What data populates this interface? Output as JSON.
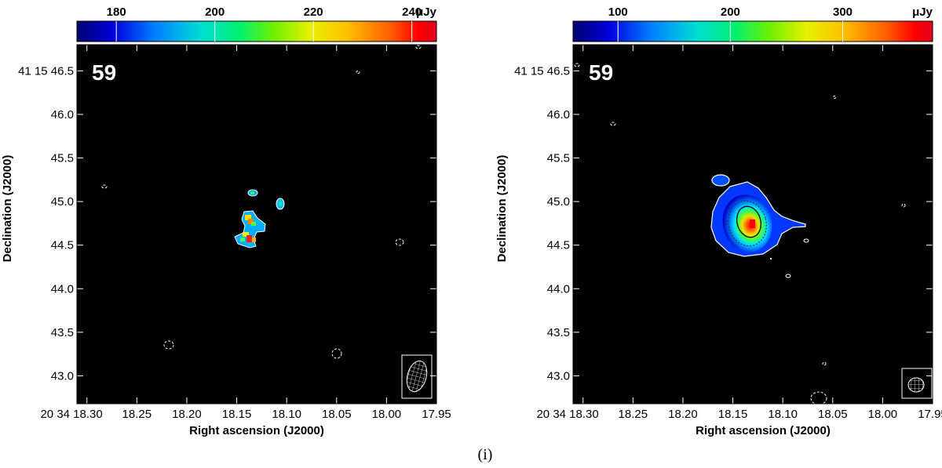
{
  "figure": {
    "caption": "(i)"
  },
  "chart_data": [
    {
      "type": "heatmap",
      "panel_label": "59",
      "xlabel": "Right ascension (J2000)",
      "ylabel": "Declination (J2000)",
      "x_ticks": [
        "20 34 18.30",
        "18.25",
        "18.20",
        "18.15",
        "18.10",
        "18.05",
        "18.00",
        "17.95"
      ],
      "x_tick_values": [
        18.3,
        18.25,
        18.2,
        18.15,
        18.1,
        18.05,
        18.0,
        17.95
      ],
      "y_ticks": [
        "41 15 46.5",
        "46.0",
        "45.5",
        "45.0",
        "44.5",
        "44.0",
        "43.5",
        "43.0"
      ],
      "y_tick_values": [
        46.5,
        46.0,
        45.5,
        45.0,
        44.5,
        44.0,
        43.5,
        43.0
      ],
      "xlim": [
        18.31,
        17.95
      ],
      "ylim": [
        42.68,
        46.8
      ],
      "colorbar": {
        "ticks": [
          "180",
          "200",
          "220",
          "240"
        ],
        "tick_values": [
          180,
          200,
          220,
          240
        ],
        "range": [
          172,
          245
        ],
        "unit": "μJy"
      },
      "source_blobs": [
        {
          "ra": 18.13,
          "dec": 45.03,
          "peak": 195
        },
        {
          "ra": 18.102,
          "dec": 44.92,
          "peak": 200
        },
        {
          "ra": 18.134,
          "dec": 44.74,
          "peak": 235
        },
        {
          "ra": 18.136,
          "dec": 44.52,
          "peak": 243
        }
      ],
      "beam": {
        "note": "hatched beam ellipse lower-right"
      },
      "grid": false
    },
    {
      "type": "heatmap",
      "panel_label": "59",
      "xlabel": "Right ascension (J2000)",
      "ylabel": "Declination (J2000)",
      "x_ticks": [
        "20 34 18.30",
        "18.25",
        "18.20",
        "18.15",
        "18.10",
        "18.05",
        "18.00",
        "17.95"
      ],
      "x_tick_values": [
        18.3,
        18.25,
        18.2,
        18.15,
        18.1,
        18.05,
        18.0,
        17.95
      ],
      "y_ticks": [
        "41 15 46.5",
        "46.0",
        "45.5",
        "45.0",
        "44.5",
        "44.0",
        "43.5",
        "43.0"
      ],
      "y_tick_values": [
        46.5,
        46.0,
        45.5,
        45.0,
        44.5,
        44.0,
        43.5,
        43.0
      ],
      "xlim": [
        18.31,
        17.95
      ],
      "ylim": [
        42.68,
        46.8
      ],
      "colorbar": {
        "ticks": [
          "100",
          "200",
          "300"
        ],
        "tick_values": [
          100,
          200,
          300
        ],
        "range": [
          60,
          380
        ],
        "unit": "μJy"
      },
      "source_blobs": [
        {
          "ra": 18.133,
          "dec": 44.72,
          "peak": 370
        }
      ],
      "beam": {
        "note": "hatched beam ellipse lower-right"
      },
      "grid": false
    }
  ]
}
